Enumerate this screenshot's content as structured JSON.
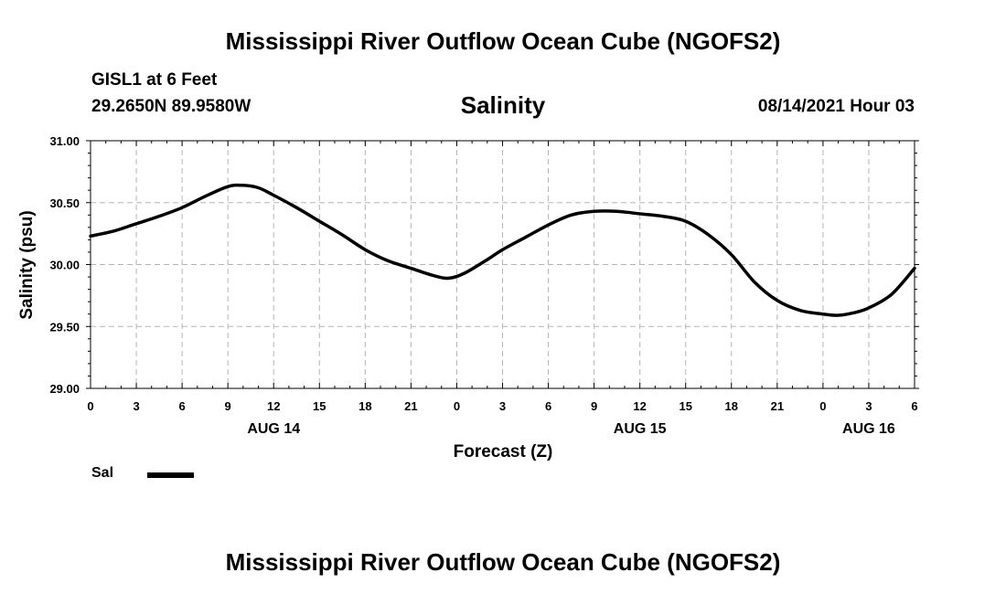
{
  "header": {
    "title": "Mississippi River Outflow Ocean Cube (NGOFS2)",
    "station_name": "GISL1 at 6 Feet",
    "station_coords": "29.2650N  89.9580W",
    "run_time": "08/14/2021 Hour 03"
  },
  "footer": {
    "title": "Mississippi River Outflow Ocean Cube (NGOFS2)"
  },
  "legend": {
    "label": "Sal",
    "color": "#000000"
  },
  "chart_data": {
    "type": "line",
    "title": "Salinity",
    "xlabel": "Forecast (Z)",
    "ylabel": "Salinity (psu)",
    "grid": true,
    "legend_position": "bottom-left",
    "xlim": [
      0,
      54
    ],
    "ylim": [
      29.0,
      31.0
    ],
    "x_ticks": [
      0,
      3,
      6,
      9,
      12,
      15,
      18,
      21,
      24,
      27,
      30,
      33,
      36,
      39,
      42,
      45,
      48,
      51,
      54
    ],
    "x_tick_labels": [
      "0",
      "3",
      "6",
      "9",
      "12",
      "15",
      "18",
      "21",
      "0",
      "3",
      "6",
      "9",
      "12",
      "15",
      "18",
      "21",
      "0",
      "3",
      "6"
    ],
    "y_ticks": [
      29.0,
      29.5,
      30.0,
      30.5,
      31.0
    ],
    "y_tick_labels": [
      "29.00",
      "29.50",
      "30.00",
      "30.50",
      "31.00"
    ],
    "date_labels": [
      {
        "x": 12,
        "label": "AUG 14"
      },
      {
        "x": 36,
        "label": "AUG 15"
      },
      {
        "x": 51,
        "label": "AUG 16"
      }
    ],
    "series": [
      {
        "name": "Sal",
        "x": [
          0,
          1.5,
          3,
          4.5,
          6,
          7.5,
          9,
          10,
          11,
          12,
          13.5,
          15,
          16.5,
          18,
          19.5,
          21,
          22.5,
          23.5,
          24.5,
          26,
          27,
          28.5,
          30,
          31.5,
          33,
          34.5,
          36,
          37.5,
          39,
          40.5,
          42,
          43.5,
          45,
          46.5,
          48,
          49,
          50,
          51,
          52.5,
          54
        ],
        "values": [
          30.23,
          30.27,
          30.33,
          30.39,
          30.46,
          30.55,
          30.63,
          30.64,
          30.62,
          30.56,
          30.46,
          30.35,
          30.24,
          30.12,
          30.03,
          29.97,
          29.91,
          29.89,
          29.93,
          30.04,
          30.12,
          30.22,
          30.32,
          30.4,
          30.43,
          30.43,
          30.41,
          30.39,
          30.35,
          30.24,
          30.08,
          29.86,
          29.71,
          29.63,
          29.6,
          29.59,
          29.61,
          29.65,
          29.76,
          29.97
        ]
      }
    ]
  }
}
